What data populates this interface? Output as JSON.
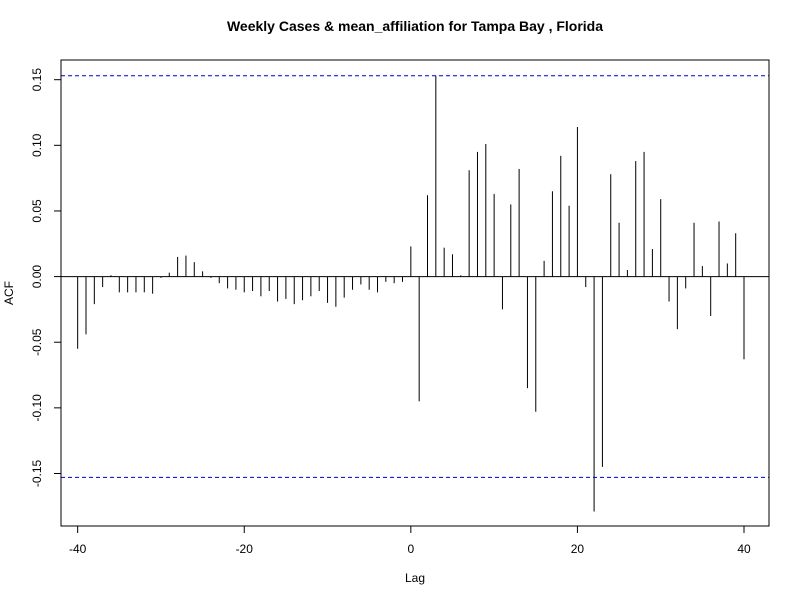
{
  "chart_data": {
    "type": "bar",
    "title": "Weekly Cases & mean_affiliation for Tampa Bay , Florida",
    "xlabel": "Lag",
    "ylabel": "ACF",
    "xlim": [
      -42,
      43
    ],
    "ylim": [
      -0.19,
      0.165
    ],
    "x_ticks": [
      -40,
      -20,
      0,
      20,
      40
    ],
    "x_tick_labels": [
      "-40",
      "-20",
      "0",
      "20",
      "40"
    ],
    "y_ticks": [
      -0.15,
      -0.1,
      -0.05,
      0.0,
      0.05,
      0.1,
      0.15
    ],
    "y_tick_labels": [
      "-0.15",
      "-0.10",
      "-0.05",
      "0.00",
      "0.05",
      "0.10",
      "0.15"
    ],
    "confidence_bounds": [
      0.153,
      -0.153
    ],
    "colors": {
      "bars": "#000000",
      "zero_line": "#000000",
      "confidence": "#0000cc",
      "frame": "#000000"
    },
    "lags": [
      -40,
      -39,
      -38,
      -37,
      -36,
      -35,
      -34,
      -33,
      -32,
      -31,
      -30,
      -29,
      -28,
      -27,
      -26,
      -25,
      -24,
      -23,
      -22,
      -21,
      -20,
      -19,
      -18,
      -17,
      -16,
      -15,
      -14,
      -13,
      -12,
      -11,
      -10,
      -9,
      -8,
      -7,
      -6,
      -5,
      -4,
      -3,
      -2,
      -1,
      0,
      1,
      2,
      3,
      4,
      5,
      6,
      7,
      8,
      9,
      10,
      11,
      12,
      13,
      14,
      15,
      16,
      17,
      18,
      19,
      20,
      21,
      22,
      23,
      24,
      25,
      26,
      27,
      28,
      29,
      30,
      31,
      32,
      33,
      34,
      35,
      36,
      37,
      38,
      39,
      40
    ],
    "acf": [
      -0.055,
      -0.044,
      -0.021,
      -0.008,
      0.001,
      -0.012,
      -0.012,
      -0.012,
      -0.012,
      -0.013,
      -0.001,
      0.003,
      0.015,
      0.016,
      0.011,
      0.004,
      -0.001,
      -0.005,
      -0.009,
      -0.01,
      -0.012,
      -0.011,
      -0.015,
      -0.011,
      -0.019,
      -0.017,
      -0.021,
      -0.018,
      -0.015,
      -0.011,
      -0.02,
      -0.023,
      -0.016,
      -0.01,
      -0.006,
      -0.01,
      -0.012,
      -0.004,
      -0.005,
      -0.004,
      0.023,
      -0.095,
      0.062,
      0.153,
      0.022,
      0.017,
      0.001,
      0.081,
      0.095,
      0.101,
      0.063,
      -0.025,
      0.055,
      0.082,
      -0.085,
      -0.103,
      0.012,
      0.065,
      0.092,
      0.054,
      0.114,
      -0.008,
      -0.179,
      -0.145,
      0.078,
      0.041,
      0.005,
      0.088,
      0.095,
      0.021,
      0.059,
      -0.019,
      -0.04,
      -0.009,
      0.041,
      0.008,
      -0.03,
      0.042,
      0.01,
      0.033,
      -0.063
    ]
  }
}
